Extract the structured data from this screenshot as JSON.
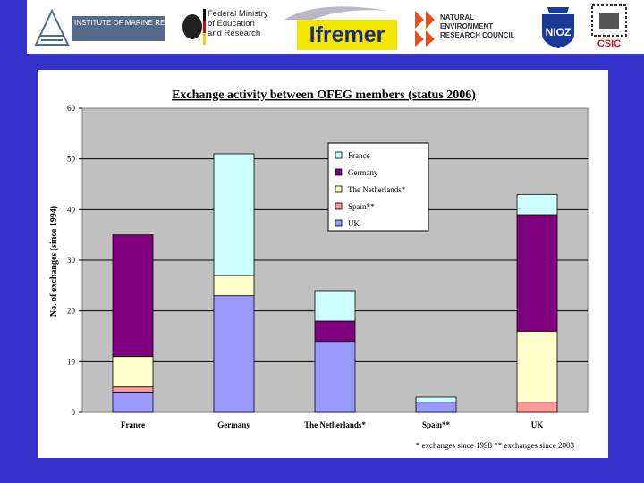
{
  "logos": {
    "imr": "INSTITUTE OF MARINE RESEARCH HAVFORSKNINGSINSTITUTTET",
    "bmbf": "Federal Ministry\nof Education\nand Research",
    "ifremer": "Ifremer",
    "nerc": "NATURAL\nENVIRONMENT\nRESEARCH COUNCIL",
    "nioz": "NIOZ",
    "csic": "CSIC"
  },
  "colors": {
    "background": "#3333cc",
    "plot_area": "#c0c0c0",
    "France": "#ccffff",
    "Germany": "#800080",
    "The Netherlands*": "#ffffcc",
    "Spain**": "#ff9999",
    "UK": "#9999ff"
  },
  "chart_data": {
    "type": "bar",
    "stacked": true,
    "title": "Exchange activity between OFEG members (status 2006)",
    "ylabel": "No. of exchanges (since 1994)",
    "xlabel": "",
    "ylim": [
      0,
      60
    ],
    "yticks": [
      0,
      10,
      20,
      30,
      40,
      50,
      60
    ],
    "grid": true,
    "legend_position": "top-right",
    "categories": [
      "France",
      "Germany",
      "The Netherlands*",
      "Spain**",
      "UK"
    ],
    "series": [
      {
        "name": "UK",
        "values": [
          4,
          23,
          14,
          2,
          0
        ]
      },
      {
        "name": "Spain**",
        "values": [
          1,
          0,
          0,
          0,
          2
        ]
      },
      {
        "name": "The Netherlands*",
        "values": [
          6,
          4,
          0,
          0,
          14
        ]
      },
      {
        "name": "Germany",
        "values": [
          24,
          0,
          4,
          0,
          23
        ]
      },
      {
        "name": "France",
        "values": [
          0,
          24,
          6,
          1,
          4
        ]
      }
    ],
    "legend_order": [
      "France",
      "Germany",
      "The Netherlands*",
      "Spain**",
      "UK"
    ],
    "footnote": "* exchanges since 1998   ** exchanges since 2003"
  }
}
